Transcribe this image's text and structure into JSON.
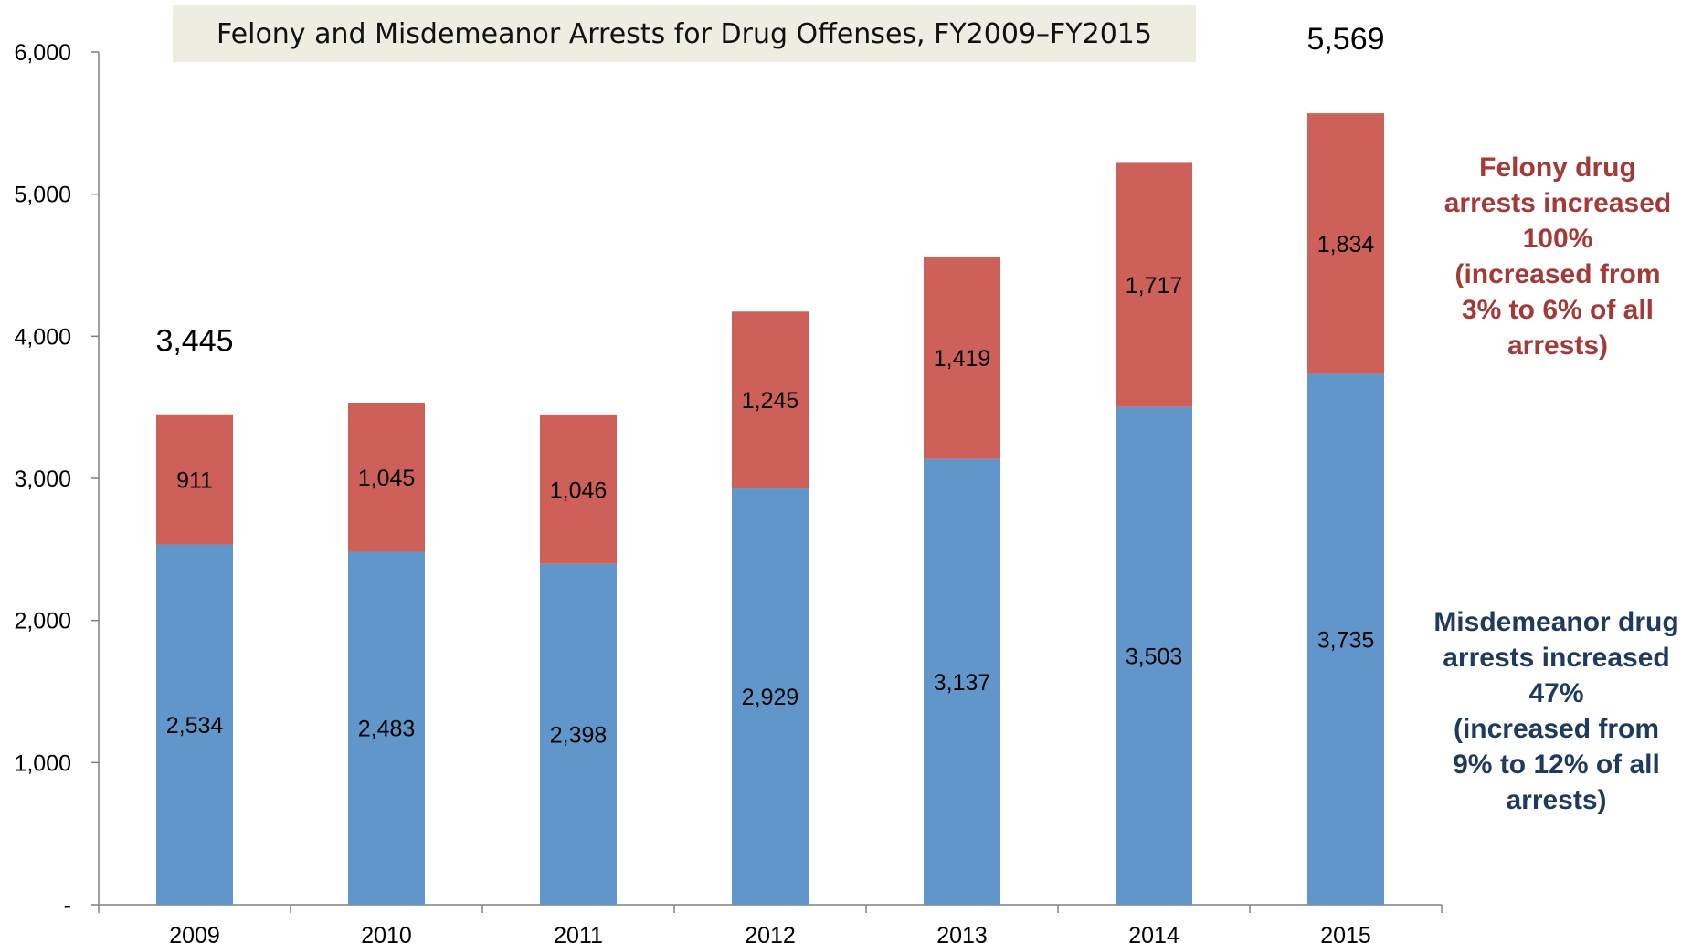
{
  "chart_data": {
    "type": "bar",
    "stacked": true,
    "title": "Felony and Misdemeanor Arrests for Drug Offenses, FY2009–FY2015",
    "categories": [
      "2009",
      "2010",
      "2011",
      "2012",
      "2013",
      "2014",
      "2015"
    ],
    "series": [
      {
        "values": [
          2534,
          2483,
          2398,
          2929,
          3137,
          3503,
          3735
        ],
        "color": "#6096c9"
      },
      {
        "values": [
          911,
          1045,
          1046,
          1245,
          1419,
          1717,
          1834
        ],
        "color": "#cd6159"
      }
    ],
    "segment_labels": [
      [
        "2,534",
        "2,483",
        "2,398",
        "2,929",
        "3,137",
        "3,503",
        "3,735"
      ],
      [
        "911",
        "1,045",
        "1,046",
        "1,245",
        "1,419",
        "1,717",
        "1,834"
      ]
    ],
    "total_labels": [
      {
        "category": "2009",
        "text": "3,445"
      },
      {
        "category": "2015",
        "text": "5,569"
      }
    ],
    "ylim": [
      0,
      6000
    ],
    "yticks": [
      0,
      1000,
      2000,
      3000,
      4000,
      5000,
      6000
    ],
    "ytick_labels": [
      "-",
      "1,000",
      "2,000",
      "3,000",
      "4,000",
      "5,000",
      "6,000"
    ],
    "grid": false,
    "xlabel": "",
    "ylabel": ""
  },
  "annotations": {
    "felony": [
      "Felony drug",
      "arrests increased",
      "100%",
      "(increased from",
      "3% to 6% of all",
      "arrests)"
    ],
    "felony_color": "#a33a38",
    "misdemeanor": [
      "Misdemeanor drug",
      "arrests increased",
      "47%",
      "(increased from",
      "9% to 12% of all",
      "arrests)"
    ],
    "misdemeanor_color": "#1e3a5f"
  }
}
